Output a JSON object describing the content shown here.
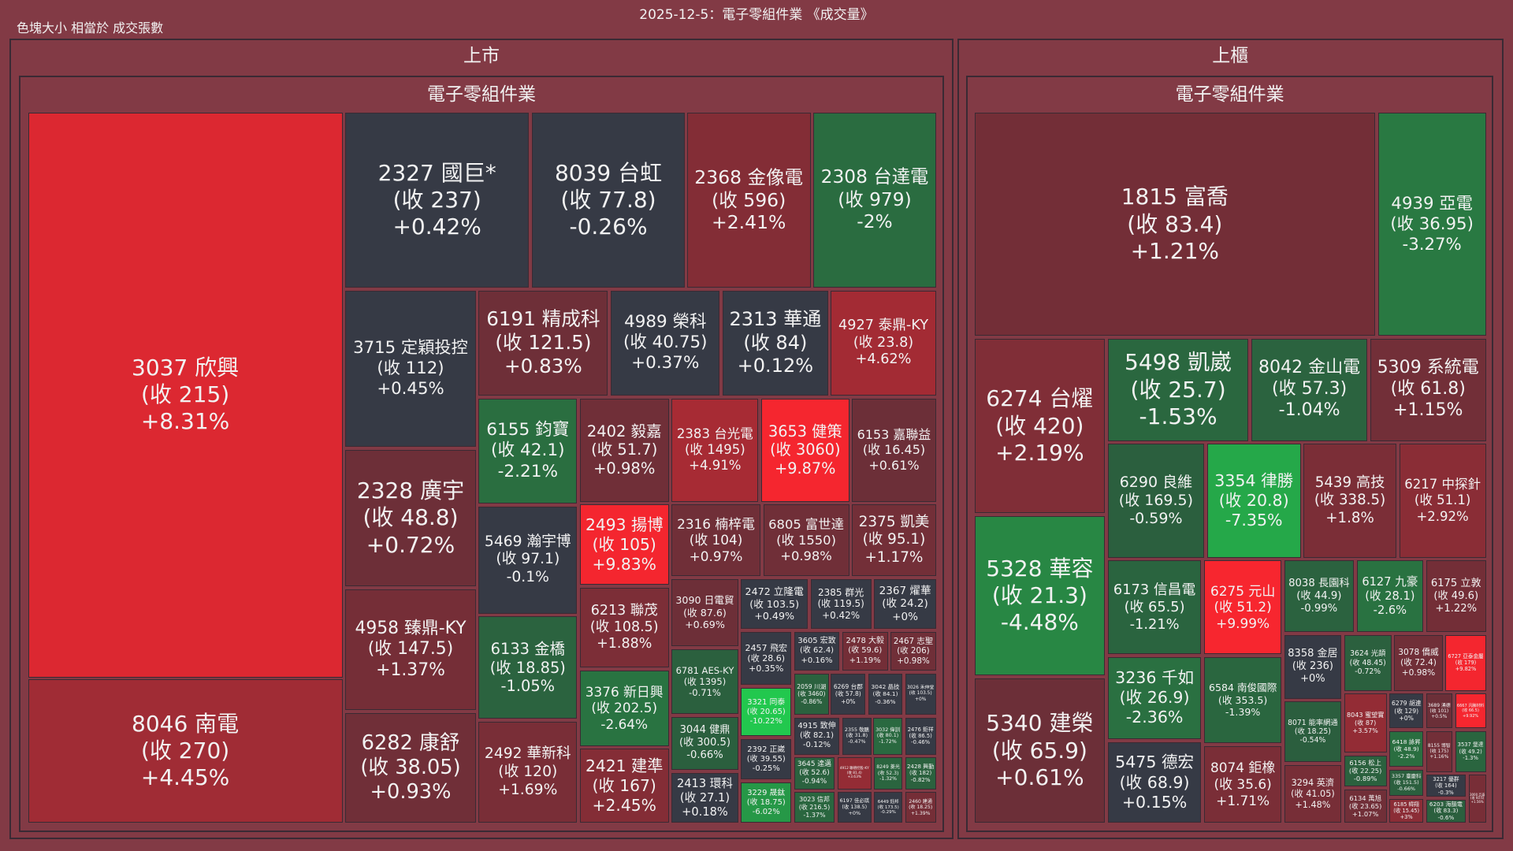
{
  "title": "2025-12-5：電子零組件業 《成交量》",
  "legend_note": "色塊大小 相當於 成交張數",
  "colors": {
    "background": "#823a45",
    "flat": "#363a45",
    "up_min": "#6b2f38",
    "up_max": "#f7262f",
    "down_min": "#2b5e3e",
    "down_max": "#22c84e"
  },
  "markets": [
    {
      "name": "上市",
      "sector": "電子零組件業",
      "stocks": [
        {
          "label": "3037 欣興",
          "close": "(收 215)",
          "change": "+8.31%"
        },
        {
          "label": "8046 南電",
          "close": "(收 270)",
          "change": "+4.45%"
        },
        {
          "label": "2327 國巨*",
          "close": "(收 237)",
          "change": "+0.42%"
        },
        {
          "label": "8039 台虹",
          "close": "(收 77.8)",
          "change": "-0.26%"
        },
        {
          "label": "2368 金像電",
          "close": "(收 596)",
          "change": "+2.41%"
        },
        {
          "label": "2308 台達電",
          "close": "(收 979)",
          "change": "-2%"
        },
        {
          "label": "3715 定穎投控",
          "close": "(收 112)",
          "change": "+0.45%"
        },
        {
          "label": "2328 廣宇",
          "close": "(收 48.8)",
          "change": "+0.72%"
        },
        {
          "label": "4958 臻鼎-KY",
          "close": "(收 147.5)",
          "change": "+1.37%"
        },
        {
          "label": "6282 康舒",
          "close": "(收 38.05)",
          "change": "+0.93%"
        },
        {
          "label": "6191 精成科",
          "close": "(收 121.5)",
          "change": "+0.83%"
        },
        {
          "label": "4989 榮科",
          "close": "(收 40.75)",
          "change": "+0.37%"
        },
        {
          "label": "2313 華通",
          "close": "(收 84)",
          "change": "+0.12%"
        },
        {
          "label": "4927 泰鼎-KY",
          "close": "(收 23.8)",
          "change": "+4.62%"
        },
        {
          "label": "6155 鈞寶",
          "close": "(收 42.1)",
          "change": "-2.21%"
        },
        {
          "label": "2402 毅嘉",
          "close": "(收 51.7)",
          "change": "+0.98%"
        },
        {
          "label": "2383 台光電",
          "close": "(收 1495)",
          "change": "+4.91%"
        },
        {
          "label": "3653 健策",
          "close": "(收 3060)",
          "change": "+9.87%"
        },
        {
          "label": "6153 嘉聯益",
          "close": "(收 16.45)",
          "change": "+0.61%"
        },
        {
          "label": "5469 瀚宇博",
          "close": "(收 97.1)",
          "change": "-0.1%"
        },
        {
          "label": "6133 金橋",
          "close": "(收 18.85)",
          "change": "-1.05%"
        },
        {
          "label": "2492 華新科",
          "close": "(收 120)",
          "change": "+1.69%"
        },
        {
          "label": "2493 揚博",
          "close": "(收 105)",
          "change": "+9.83%"
        },
        {
          "label": "6213 聯茂",
          "close": "(收 108.5)",
          "change": "+1.88%"
        },
        {
          "label": "3376 新日興",
          "close": "(收 202.5)",
          "change": "-2.64%"
        },
        {
          "label": "2421 建準",
          "close": "(收 167)",
          "change": "+2.45%"
        },
        {
          "label": "2316 楠梓電",
          "close": "(收 104)",
          "change": "+0.97%"
        },
        {
          "label": "6805 富世達",
          "close": "(收 1550)",
          "change": "+0.98%"
        },
        {
          "label": "2375 凱美",
          "close": "(收 95.1)",
          "change": "+1.17%"
        },
        {
          "label": "3090 日電貿",
          "close": "(收 87.6)",
          "change": "+0.69%"
        },
        {
          "label": "6781 AES-KY",
          "close": "(收 1395)",
          "change": "-0.71%"
        },
        {
          "label": "3044 健鼎",
          "close": "(收 300.5)",
          "change": "-0.66%"
        },
        {
          "label": "2413 環科",
          "close": "(收 27.1)",
          "change": "+0.18%"
        },
        {
          "label": "2472 立隆電",
          "close": "(收 103.5)",
          "change": "+0.49%"
        },
        {
          "label": "2385 群光",
          "close": "(收 119.5)",
          "change": "+0.42%"
        },
        {
          "label": "2367 燿華",
          "close": "(收 24.2)",
          "change": "+0%"
        },
        {
          "label": "2457 飛宏",
          "close": "(收 28.6)",
          "change": "+0.35%"
        },
        {
          "label": "3605 宏致",
          "close": "(收 62.4)",
          "change": "+0.16%"
        },
        {
          "label": "2478 大毅",
          "close": "(收 59.6)",
          "change": "+1.19%"
        },
        {
          "label": "2467 志聖",
          "close": "(收 206)",
          "change": "+0.98%"
        },
        {
          "label": "3321 同泰",
          "close": "(收 20.65)",
          "change": "-10.22%"
        },
        {
          "label": "2392 正崴",
          "close": "(收 39.55)",
          "change": "-0.25%"
        },
        {
          "label": "3229 晟鈦",
          "close": "(收 18.75)",
          "change": "-6.02%"
        },
        {
          "label": "2059 川湖",
          "close": "(收 3460)",
          "change": "-0.86%"
        },
        {
          "label": "6269 台郡",
          "close": "(收 57.8)",
          "change": "+0%"
        },
        {
          "label": "3042 晶技",
          "close": "(收 84.1)",
          "change": "-0.36%"
        },
        {
          "label": "3026 禾伸堂",
          "close": "(收 103.5)",
          "change": "+0%"
        },
        {
          "label": "4915 致伸",
          "close": "(收 82.1)",
          "change": "-0.12%"
        },
        {
          "label": "2355 敬鵬",
          "close": "(收 31.8)",
          "change": "-0.47%"
        },
        {
          "label": "3032 偉訓",
          "close": "(收 80.1)",
          "change": "-1.72%"
        },
        {
          "label": "2476 鉅祥",
          "close": "(收 86.5)",
          "change": "-0.46%"
        },
        {
          "label": "3645 達邁",
          "close": "(收 52.6)",
          "change": "-0.94%"
        },
        {
          "label": "3023 信邦",
          "close": "(收 216.5)",
          "change": "-1.37%"
        },
        {
          "label": "4912 聯德控股-KY",
          "close": "(收 81.4)",
          "change": "+3.63%"
        },
        {
          "label": "8249 菱光",
          "close": "(收 52.3)",
          "change": "-1.32%"
        },
        {
          "label": "2428 興勤",
          "close": "(收 182)",
          "change": "-0.82%"
        },
        {
          "label": "6197 佳必琪",
          "close": "(收 138.5)",
          "change": "+0%"
        },
        {
          "label": "6449 鈺邦",
          "close": "(收 173.5)",
          "change": "-0.29%"
        },
        {
          "label": "2460 建通",
          "close": "(收 18.25)",
          "change": "+1.39%"
        }
      ]
    },
    {
      "name": "上櫃",
      "sector": "電子零組件業",
      "stocks": [
        {
          "label": "1815 富喬",
          "close": "(收 83.4)",
          "change": "+1.21%"
        },
        {
          "label": "4939 亞電",
          "close": "(收 36.95)",
          "change": "-3.27%"
        },
        {
          "label": "6274 台燿",
          "close": "(收 420)",
          "change": "+2.19%"
        },
        {
          "label": "5328 華容",
          "close": "(收 21.3)",
          "change": "-4.48%"
        },
        {
          "label": "5340 建榮",
          "close": "(收 65.9)",
          "change": "+0.61%"
        },
        {
          "label": "5498 凱崴",
          "close": "(收 25.7)",
          "change": "-1.53%"
        },
        {
          "label": "8042 金山電",
          "close": "(收 57.3)",
          "change": "-1.04%"
        },
        {
          "label": "5309 系統電",
          "close": "(收 61.8)",
          "change": "+1.15%"
        },
        {
          "label": "6290 良維",
          "close": "(收 169.5)",
          "change": "-0.59%"
        },
        {
          "label": "3354 律勝",
          "close": "(收 20.8)",
          "change": "-7.35%"
        },
        {
          "label": "5439 高技",
          "close": "(收 338.5)",
          "change": "+1.8%"
        },
        {
          "label": "6217 中探針",
          "close": "(收 51.1)",
          "change": "+2.92%"
        },
        {
          "label": "6173 信昌電",
          "close": "(收 65.5)",
          "change": "-1.21%"
        },
        {
          "label": "6275 元山",
          "close": "(收 51.2)",
          "change": "+9.99%"
        },
        {
          "label": "3236 千如",
          "close": "(收 26.9)",
          "change": "-2.36%"
        },
        {
          "label": "5475 德宏",
          "close": "(收 68.9)",
          "change": "+0.15%"
        },
        {
          "label": "6584 南俊國際",
          "close": "(收 353.5)",
          "change": "-1.39%"
        },
        {
          "label": "8074 鉅橡",
          "close": "(收 35.6)",
          "change": "+1.71%"
        },
        {
          "label": "8038 長園科",
          "close": "(收 44.9)",
          "change": "-0.99%"
        },
        {
          "label": "6127 九豪",
          "close": "(收 28.1)",
          "change": "-2.6%"
        },
        {
          "label": "6175 立敦",
          "close": "(收 49.6)",
          "change": "+1.22%"
        },
        {
          "label": "8358 金居",
          "close": "(收 236)",
          "change": "+0%"
        },
        {
          "label": "3624 光頡",
          "close": "(收 48.45)",
          "change": "-0.72%"
        },
        {
          "label": "3078 僑威",
          "close": "(收 72.4)",
          "change": "+0.98%"
        },
        {
          "label": "6727 亞泰金屬",
          "close": "(收 179)",
          "change": "+9.82%"
        },
        {
          "label": "8071 能率網通",
          "close": "(收 18.25)",
          "change": "-0.54%"
        },
        {
          "label": "3294 英濟",
          "close": "(收 41.05)",
          "change": "+1.48%"
        },
        {
          "label": "8043 蜜望實",
          "close": "(收 87)",
          "change": "+3.57%"
        },
        {
          "label": "6279 胡連",
          "close": "(收 129)",
          "change": "+0%"
        },
        {
          "label": "3689 湧德",
          "close": "(收 101)",
          "change": "+0.5%"
        },
        {
          "label": "6667 汎騰材料",
          "close": "(收 66.5)",
          "change": "+9.92%"
        },
        {
          "label": "6156 松上",
          "close": "(收 22.25)",
          "change": "-0.89%"
        },
        {
          "label": "6134 萬旭",
          "close": "(收 23.65)",
          "change": "+1.07%"
        },
        {
          "label": "6418 詠昇",
          "close": "(收 48.9)",
          "change": "-2.2%"
        },
        {
          "label": "3357 臺慶科",
          "close": "(收 151.5)",
          "change": "-0.66%"
        },
        {
          "label": "6185 幃翔",
          "close": "(收 15.45)",
          "change": "+3%"
        },
        {
          "label": "8155 博智",
          "close": "(收 175)",
          "change": "+1.16%"
        },
        {
          "label": "3537 堡達",
          "close": "(收 49.2)",
          "change": "-1.3%"
        },
        {
          "label": "3217 優群",
          "close": "(收 164)",
          "change": "-0.3%"
        },
        {
          "label": "6203 海韻電",
          "close": "(收 83.3)",
          "change": "-0.6%"
        },
        {
          "label": "3000 亞泰",
          "close": "(收 60.6)",
          "change": "+1.56%"
        }
      ]
    }
  ]
}
